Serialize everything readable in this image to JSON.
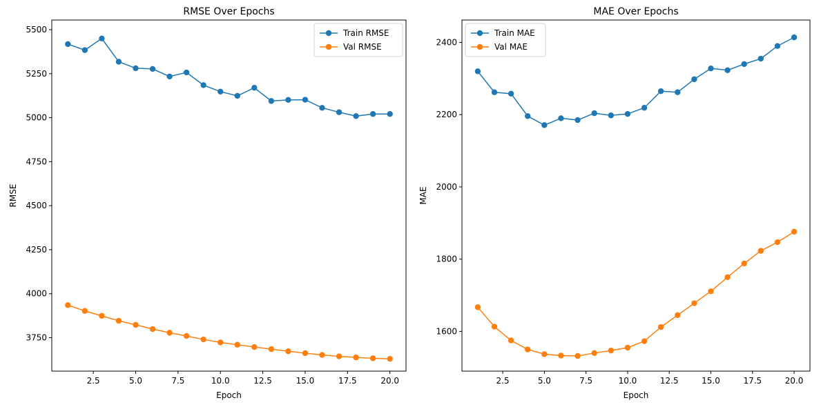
{
  "chart_data": [
    {
      "type": "line",
      "title": "RMSE Over Epochs",
      "xlabel": "Epoch",
      "ylabel": "RMSE",
      "xlim": [
        0.05,
        20.95
      ],
      "ylim": [
        3560,
        5555
      ],
      "xticks": [
        2.5,
        5.0,
        7.5,
        10.0,
        12.5,
        15.0,
        17.5,
        20.0
      ],
      "xtick_labels": [
        "2.5",
        "5.0",
        "7.5",
        "10.0",
        "12.5",
        "15.0",
        "17.5",
        "20.0"
      ],
      "yticks": [
        3750,
        4000,
        4250,
        4500,
        4750,
        5000,
        5250,
        5500
      ],
      "ytick_labels": [
        "3750",
        "4000",
        "4250",
        "4500",
        "4750",
        "5000",
        "5250",
        "5500"
      ],
      "legend_position": "upper-right",
      "grid": false,
      "x": [
        1,
        2,
        3,
        4,
        5,
        6,
        7,
        8,
        9,
        10,
        11,
        12,
        13,
        14,
        15,
        16,
        17,
        18,
        19,
        20
      ],
      "series": [
        {
          "name": "Train RMSE",
          "color": "#1f77b4",
          "marker": "circle",
          "values": [
            5418,
            5384,
            5450,
            5318,
            5281,
            5277,
            5234,
            5257,
            5185,
            5148,
            5124,
            5170,
            5095,
            5101,
            5102,
            5056,
            5031,
            5009,
            5021,
            5021
          ]
        },
        {
          "name": "Val RMSE",
          "color": "#ff7f0e",
          "marker": "circle",
          "values": [
            3935,
            3902,
            3874,
            3846,
            3823,
            3799,
            3778,
            3760,
            3740,
            3723,
            3710,
            3697,
            3685,
            3673,
            3662,
            3652,
            3644,
            3638,
            3633,
            3630
          ]
        }
      ]
    },
    {
      "type": "line",
      "title": "MAE Over Epochs",
      "xlabel": "Epoch",
      "ylabel": "MAE",
      "xlim": [
        0.05,
        20.95
      ],
      "ylim": [
        1490,
        2462
      ],
      "xticks": [
        2.5,
        5.0,
        7.5,
        10.0,
        12.5,
        15.0,
        17.5,
        20.0
      ],
      "xtick_labels": [
        "2.5",
        "5.0",
        "7.5",
        "10.0",
        "12.5",
        "15.0",
        "17.5",
        "20.0"
      ],
      "yticks": [
        1600,
        1800,
        2000,
        2200,
        2400
      ],
      "ytick_labels": [
        "1600",
        "1800",
        "2000",
        "2200",
        "2400"
      ],
      "legend_position": "upper-left",
      "grid": false,
      "x": [
        1,
        2,
        3,
        4,
        5,
        6,
        7,
        8,
        9,
        10,
        11,
        12,
        13,
        14,
        15,
        16,
        17,
        18,
        19,
        20
      ],
      "series": [
        {
          "name": "Train MAE",
          "color": "#1f77b4",
          "marker": "circle",
          "values": [
            2320,
            2262,
            2258,
            2196,
            2171,
            2190,
            2185,
            2204,
            2198,
            2202,
            2219,
            2265,
            2262,
            2298,
            2328,
            2323,
            2340,
            2355,
            2390,
            2414
          ]
        },
        {
          "name": "Val MAE",
          "color": "#ff7f0e",
          "marker": "circle",
          "values": [
            1667,
            1613,
            1575,
            1550,
            1537,
            1533,
            1532,
            1540,
            1547,
            1555,
            1573,
            1612,
            1645,
            1678,
            1711,
            1750,
            1788,
            1823,
            1847,
            1876
          ]
        }
      ]
    }
  ]
}
